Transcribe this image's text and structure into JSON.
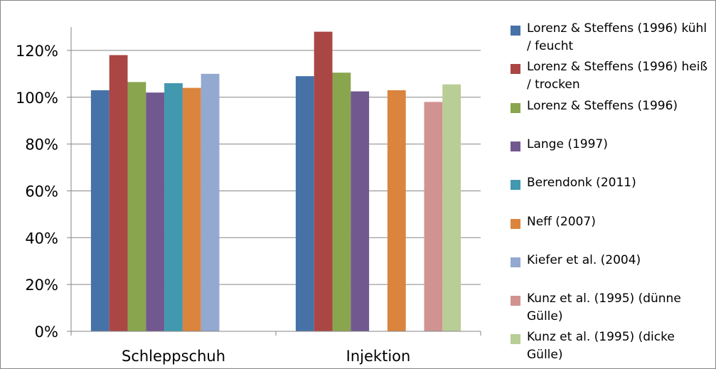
{
  "chart_data": {
    "type": "bar",
    "categories": [
      "Schleppschuh",
      "Injektion"
    ],
    "yticks": [
      "0%",
      "20%",
      "40%",
      "60%",
      "80%",
      "100%",
      "120%"
    ],
    "ylim": [
      0,
      130
    ],
    "y_unit": "%",
    "grid": true,
    "legend_position": "right",
    "series": [
      {
        "name": "Lorenz & Steffens (1996) kühl / feucht",
        "color": "#4672A8",
        "values": [
          103,
          109
        ]
      },
      {
        "name": "Lorenz & Steffens (1996) heiß / trocken",
        "color": "#AA4644",
        "values": [
          118,
          128
        ]
      },
      {
        "name": "Lorenz & Steffens (1996)",
        "color": "#89A54E",
        "values": [
          106.5,
          110.5
        ]
      },
      {
        "name": "Lange (1997)",
        "color": "#71588F",
        "values": [
          102,
          102.5
        ]
      },
      {
        "name": "Berendonk (2011)",
        "color": "#4198AF",
        "values": [
          106,
          null
        ]
      },
      {
        "name": "Neff (2007)",
        "color": "#DB843D",
        "values": [
          104,
          103
        ]
      },
      {
        "name": "Kiefer et al. (2004)",
        "color": "#93A9CF",
        "values": [
          110,
          null
        ]
      },
      {
        "name": "Kunz et al. (1995) (dünne Gülle)",
        "color": "#D19392",
        "values": [
          null,
          98
        ]
      },
      {
        "name": "Kunz et al. (1995) (dicke Gülle)",
        "color": "#B9CD96",
        "values": [
          null,
          105.5
        ]
      }
    ]
  }
}
